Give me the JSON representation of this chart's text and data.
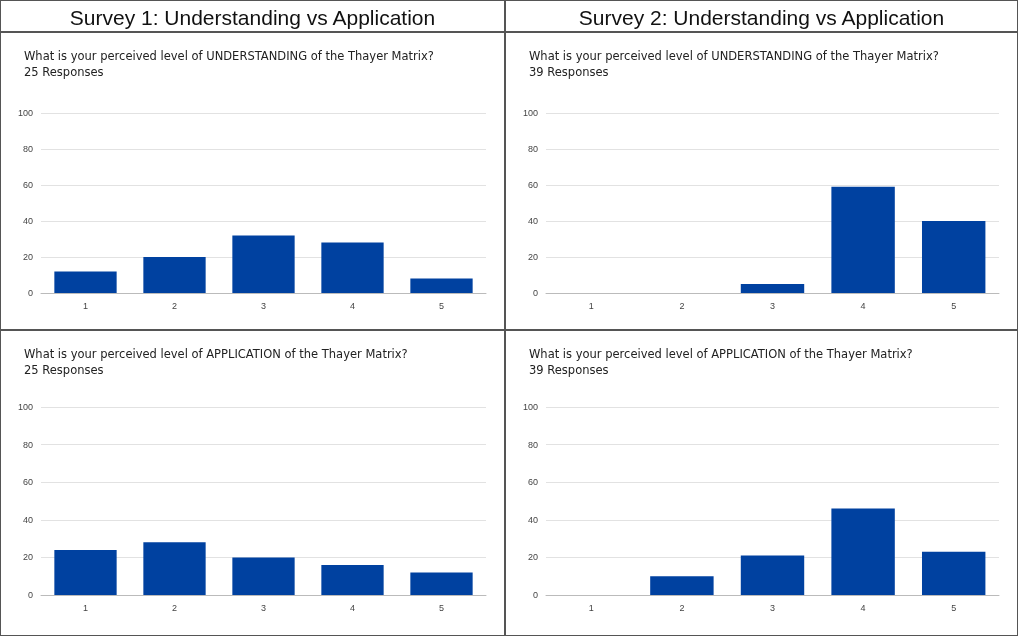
{
  "chart_data": [
    {
      "type": "bar",
      "annotations": [
        "Survey 1: Understanding vs Application"
      ],
      "title": "What is your perceived level of UNDERSTANDING of the Thayer Matrix?",
      "subtitle": "25 Responses",
      "categories": [
        "1",
        "2",
        "3",
        "4",
        "5"
      ],
      "values": [
        12,
        20,
        32,
        28,
        8
      ],
      "color": "#0041a0",
      "ylim": [
        0,
        100
      ],
      "yticks": [
        0,
        20,
        40,
        60,
        80,
        100
      ],
      "grid": "y"
    },
    {
      "type": "bar",
      "annotations": [
        "Survey 2: Understanding vs Application"
      ],
      "title": "What is your perceived level of UNDERSTANDING of the Thayer Matrix?",
      "subtitle": "39 Responses",
      "categories": [
        "1",
        "2",
        "3",
        "4",
        "5"
      ],
      "values": [
        0,
        0,
        5,
        59,
        40
      ],
      "color": "#0041a0",
      "ylim": [
        0,
        100
      ],
      "yticks": [
        0,
        20,
        40,
        60,
        80,
        100
      ],
      "grid": "y"
    },
    {
      "type": "bar",
      "title": "What is your perceived level of APPLICATION of the Thayer Matrix?",
      "subtitle": "25 Responses",
      "categories": [
        "1",
        "2",
        "3",
        "4",
        "5"
      ],
      "values": [
        24,
        28,
        20,
        16,
        12
      ],
      "color": "#0041a0",
      "ylim": [
        0,
        100
      ],
      "yticks": [
        0,
        20,
        40,
        60,
        80,
        100
      ],
      "grid": "y"
    },
    {
      "type": "bar",
      "title": "What is your perceived level of APPLICATION of the Thayer Matrix?",
      "subtitle": "39 Responses",
      "categories": [
        "1",
        "2",
        "3",
        "4",
        "5"
      ],
      "values": [
        0,
        10,
        21,
        46,
        23
      ],
      "color": "#0041a0",
      "ylim": [
        0,
        100
      ],
      "yticks": [
        0,
        20,
        40,
        60,
        80,
        100
      ],
      "grid": "y"
    }
  ]
}
